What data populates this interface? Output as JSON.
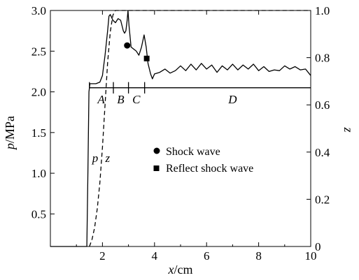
{
  "chart_data": {
    "type": "line",
    "xlabel": {
      "var": "x",
      "unit": "/cm"
    },
    "ylabel_left": {
      "var": "p",
      "unit": "/MPa"
    },
    "ylabel_right": "z",
    "xlim": [
      0,
      10
    ],
    "ylim_left": [
      0.1,
      3.0
    ],
    "ylim_right": [
      0,
      1.0
    ],
    "x_ticks": [
      2,
      4,
      6,
      8,
      10
    ],
    "y_left_ticks": [
      0.5,
      1.0,
      1.5,
      2.0,
      2.5,
      3.0
    ],
    "y_left_tick_labels": [
      "0.5",
      "1.0",
      "1.5",
      "2.0",
      "2.5",
      "3.0"
    ],
    "y_right_ticks": [
      0,
      0.2,
      0.4,
      0.6,
      0.8,
      1.0
    ],
    "y_right_tick_labels": [
      "0",
      "0.2",
      "0.4",
      "0.6",
      "0.8",
      "1.0"
    ],
    "grid": false,
    "series": [
      {
        "name": "p",
        "axis": "left",
        "style": "solid",
        "points": [
          [
            0,
            0.1
          ],
          [
            1.4,
            0.1
          ],
          [
            1.44,
            1.0
          ],
          [
            1.48,
            2.0
          ],
          [
            1.52,
            2.1
          ],
          [
            1.6,
            2.1
          ],
          [
            1.75,
            2.1
          ],
          [
            1.9,
            2.12
          ],
          [
            2.0,
            2.2
          ],
          [
            2.1,
            2.45
          ],
          [
            2.2,
            2.75
          ],
          [
            2.25,
            2.93
          ],
          [
            2.3,
            2.95
          ],
          [
            2.4,
            2.88
          ],
          [
            2.5,
            2.85
          ],
          [
            2.6,
            2.9
          ],
          [
            2.7,
            2.88
          ],
          [
            2.8,
            2.75
          ],
          [
            2.85,
            2.72
          ],
          [
            2.9,
            2.75
          ],
          [
            2.95,
            2.88
          ],
          [
            2.98,
            3.0
          ],
          [
            3.02,
            2.82
          ],
          [
            3.1,
            2.55
          ],
          [
            3.3,
            2.5
          ],
          [
            3.4,
            2.45
          ],
          [
            3.5,
            2.55
          ],
          [
            3.6,
            2.7
          ],
          [
            3.68,
            2.55
          ],
          [
            3.75,
            2.35
          ],
          [
            3.85,
            2.22
          ],
          [
            3.92,
            2.16
          ],
          [
            4.0,
            2.22
          ],
          [
            4.2,
            2.24
          ],
          [
            4.4,
            2.28
          ],
          [
            4.6,
            2.23
          ],
          [
            4.8,
            2.26
          ],
          [
            5.0,
            2.32
          ],
          [
            5.2,
            2.26
          ],
          [
            5.4,
            2.34
          ],
          [
            5.6,
            2.27
          ],
          [
            5.8,
            2.35
          ],
          [
            6.0,
            2.28
          ],
          [
            6.2,
            2.33
          ],
          [
            6.4,
            2.24
          ],
          [
            6.6,
            2.32
          ],
          [
            6.8,
            2.27
          ],
          [
            7.0,
            2.34
          ],
          [
            7.2,
            2.27
          ],
          [
            7.4,
            2.33
          ],
          [
            7.6,
            2.28
          ],
          [
            7.8,
            2.34
          ],
          [
            8.0,
            2.26
          ],
          [
            8.2,
            2.31
          ],
          [
            8.4,
            2.25
          ],
          [
            8.6,
            2.27
          ],
          [
            8.8,
            2.26
          ],
          [
            9.0,
            2.32
          ],
          [
            9.2,
            2.28
          ],
          [
            9.4,
            2.31
          ],
          [
            9.6,
            2.27
          ],
          [
            9.8,
            2.28
          ],
          [
            10.0,
            2.2
          ]
        ]
      },
      {
        "name": "z",
        "axis": "right",
        "style": "dashed",
        "points": [
          [
            1.5,
            0.0
          ],
          [
            1.6,
            0.03
          ],
          [
            1.7,
            0.08
          ],
          [
            1.8,
            0.16
          ],
          [
            1.9,
            0.27
          ],
          [
            2.0,
            0.42
          ],
          [
            2.1,
            0.6
          ],
          [
            2.2,
            0.78
          ],
          [
            2.3,
            0.91
          ],
          [
            2.4,
            0.98
          ],
          [
            2.5,
            1.0
          ],
          [
            10.0,
            1.0
          ]
        ]
      },
      {
        "name": "region-line",
        "axis": "left",
        "style": "solid",
        "points": [
          [
            1.5,
            2.05
          ],
          [
            10.0,
            2.05
          ]
        ]
      }
    ],
    "dividers": [
      {
        "x": 1.5,
        "y_from": 2.05,
        "y_to": 2.12
      },
      {
        "x": 2.42,
        "y_from": 1.98,
        "y_to": 2.12
      },
      {
        "x": 3.0,
        "y_from": 1.98,
        "y_to": 2.12
      },
      {
        "x": 3.62,
        "y_from": 1.98,
        "y_to": 2.12
      }
    ],
    "region_labels": [
      {
        "text": "A",
        "x": 1.95,
        "y": 1.96
      },
      {
        "text": "B",
        "x": 2.7,
        "y": 1.96
      },
      {
        "text": "C",
        "x": 3.3,
        "y": 1.96
      },
      {
        "text": "D",
        "x": 7.0,
        "y": 1.96
      }
    ],
    "curve_labels": [
      {
        "text": "p",
        "x": 1.72,
        "y": 1.14
      },
      {
        "text": "z",
        "x": 2.2,
        "y": 1.14
      }
    ],
    "markers": [
      {
        "name": "Shock wave",
        "shape": "circle",
        "x": 2.95,
        "y": 2.57
      },
      {
        "name": "Reflect shock wave",
        "shape": "square",
        "x": 3.7,
        "y": 2.41
      }
    ],
    "legend": {
      "placement": "center",
      "entries": [
        {
          "shape": "circle",
          "label": "Shock wave"
        },
        {
          "shape": "square",
          "label": "Reflect shock wave"
        }
      ]
    }
  }
}
